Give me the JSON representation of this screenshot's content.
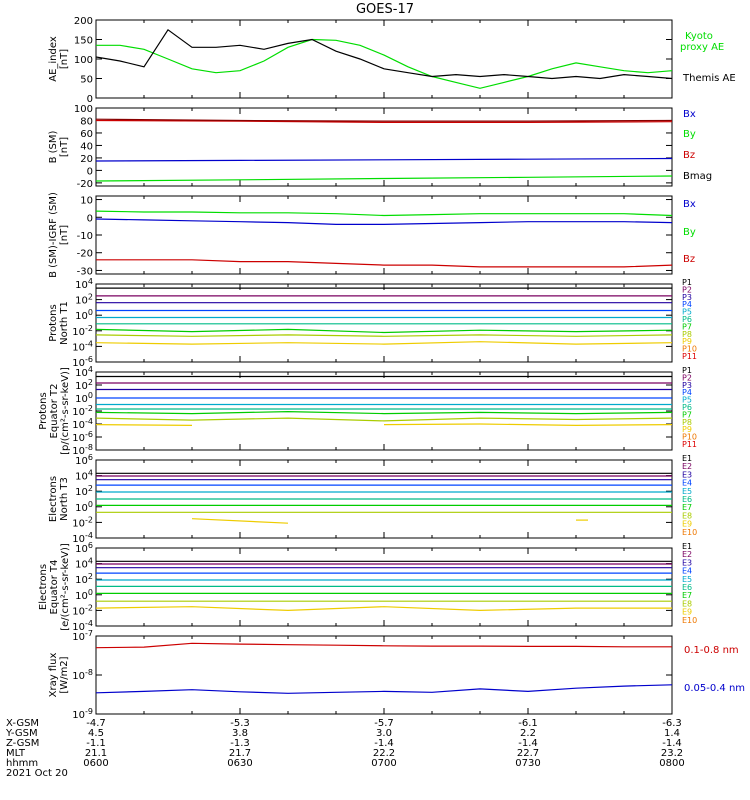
{
  "title": "GOES-17",
  "date_label": "2021 Oct 20",
  "orbit_labels": [
    "X-GSM",
    "Y-GSM",
    "Z-GSM",
    "MLT",
    "hhmm"
  ],
  "orbit_columns": [
    {
      "x": "-4.7",
      "y": "4.5",
      "z": "-1.1",
      "mlt": "21.1",
      "hhmm": "0600"
    },
    {
      "x": "-5.3",
      "y": "3.8",
      "z": "-1.3",
      "mlt": "21.7",
      "hhmm": "0630"
    },
    {
      "x": "-5.7",
      "y": "3.0",
      "z": "-1.4",
      "mlt": "22.2",
      "hhmm": "0700"
    },
    {
      "x": "-6.1",
      "y": "2.2",
      "z": "-1.4",
      "mlt": "22.7",
      "hhmm": "0730"
    },
    {
      "x": "-6.3",
      "y": "1.4",
      "z": "-1.4",
      "mlt": "23.2",
      "hhmm": "0800"
    }
  ],
  "colors": {
    "black": "#000000",
    "blue": "#0000cc",
    "green": "#00dd00",
    "red": "#cc0000",
    "dark_red": "#880000",
    "ramp": [
      "#000000",
      "#7a0060",
      "#2000a0",
      "#0044ff",
      "#00aacc",
      "#00bb88",
      "#00cc00",
      "#aacc00",
      "#eecc00",
      "#ee7700",
      "#dd0000"
    ]
  },
  "chart_data": [
    {
      "type": "line",
      "ylabel": "AE_index [nT]",
      "ylim": [
        0,
        200
      ],
      "yticks": [
        "0",
        "50",
        "100",
        "150",
        "200"
      ],
      "x": [
        0,
        5,
        10,
        15,
        20,
        25,
        30,
        35,
        40,
        45,
        50,
        55,
        60,
        65,
        70,
        75,
        80,
        85,
        90,
        95,
        100,
        105,
        110,
        115,
        120
      ],
      "series": [
        {
          "name": "Kyoto proxy AE",
          "color": "green",
          "values": [
            135,
            135,
            125,
            100,
            75,
            65,
            70,
            95,
            130,
            150,
            148,
            135,
            110,
            80,
            55,
            40,
            25,
            40,
            55,
            75,
            90,
            80,
            70,
            65,
            70
          ]
        },
        {
          "name": "Themis AE",
          "color": "black",
          "values": [
            105,
            95,
            80,
            175,
            130,
            130,
            135,
            125,
            140,
            150,
            120,
            100,
            75,
            65,
            55,
            60,
            55,
            60,
            55,
            50,
            55,
            50,
            60,
            55,
            50
          ]
        }
      ]
    },
    {
      "type": "line",
      "ylabel": "B (SM) [nT]",
      "ylim": [
        -25,
        100
      ],
      "yticks": [
        "-20",
        "0",
        "20",
        "40",
        "60",
        "80",
        "100"
      ],
      "x": [
        0,
        30,
        60,
        90,
        120
      ],
      "series": [
        {
          "name": "Bx",
          "color": "blue",
          "values": [
            15,
            16,
            17,
            18,
            19
          ]
        },
        {
          "name": "By",
          "color": "green",
          "values": [
            -17,
            -15,
            -13,
            -11,
            -9
          ]
        },
        {
          "name": "Bz",
          "color": "red",
          "values": [
            80,
            79,
            77,
            77,
            78
          ]
        },
        {
          "name": "Bmag",
          "color": "dark_red",
          "values": [
            82,
            80,
            79,
            79,
            80
          ]
        }
      ]
    },
    {
      "type": "line",
      "ylabel": "B (SM)-IGRF (SM) [nT]",
      "ylim": [
        -32,
        12
      ],
      "yticks": [
        "-30",
        "-20",
        "-10",
        "0",
        "10"
      ],
      "x": [
        0,
        10,
        20,
        30,
        40,
        50,
        60,
        70,
        80,
        90,
        100,
        110,
        120
      ],
      "series": [
        {
          "name": "Bx",
          "color": "blue",
          "values": [
            -1,
            -1.5,
            -2,
            -2.5,
            -3,
            -4,
            -4,
            -3.5,
            -3,
            -2.5,
            -2.5,
            -2.5,
            -3
          ]
        },
        {
          "name": "By",
          "color": "green",
          "values": [
            3.5,
            3,
            3,
            2.5,
            2.5,
            2,
            1,
            1.5,
            2,
            2,
            2,
            2,
            1
          ]
        },
        {
          "name": "Bz",
          "color": "red",
          "values": [
            -24,
            -24,
            -24,
            -25,
            -25,
            -26,
            -27,
            -27,
            -28,
            -28,
            -28,
            -28,
            -27
          ]
        }
      ]
    },
    {
      "type": "line",
      "ylabel": "Protons North T1",
      "yscale": "log",
      "ylim": [
        1e-06,
        10000.0
      ],
      "yticks": [
        "10^-6",
        "10^-4",
        "10^-2",
        "10^0",
        "10^2",
        "10^4"
      ],
      "x": [
        0,
        20,
        40,
        60,
        80,
        100,
        120
      ],
      "series": [
        {
          "name": "P1",
          "values": [
            3000,
            3000,
            3000,
            3000,
            3000,
            3000,
            3000
          ]
        },
        {
          "name": "P2",
          "values": [
            300,
            300,
            300,
            300,
            300,
            300,
            300
          ]
        },
        {
          "name": "P3",
          "values": [
            40,
            40,
            40,
            40,
            40,
            40,
            40
          ]
        },
        {
          "name": "P4",
          "values": [
            4,
            4,
            4,
            4,
            4,
            4,
            4
          ]
        },
        {
          "name": "P5",
          "values": [
            0.5,
            0.5,
            0.5,
            0.5,
            0.5,
            0.5,
            0.5
          ]
        },
        {
          "name": "P6",
          "values": [
            0.08,
            0.08,
            0.08,
            0.08,
            0.08,
            0.08,
            0.08
          ]
        },
        {
          "name": "P7",
          "values": [
            0.015,
            0.008,
            0.015,
            0.006,
            0.012,
            0.008,
            0.012
          ]
        },
        {
          "name": "P8",
          "values": [
            0.003,
            0.002,
            0.003,
            0.002,
            0.003,
            0.002,
            0.003
          ]
        },
        {
          "name": "P9",
          "values": [
            0.0003,
            0.0002,
            0.0003,
            0.0002,
            0.0004,
            0.0002,
            0.0003
          ]
        },
        {
          "name": "P10",
          "values": [
            null,
            null,
            null,
            null,
            null,
            null,
            null
          ]
        },
        {
          "name": "P11",
          "values": [
            null,
            null,
            null,
            null,
            null,
            null,
            null
          ]
        }
      ]
    },
    {
      "type": "line",
      "ylabel": "Protons Equator T2 [p/(cm^2-s-sr-keV)]",
      "yscale": "log",
      "ylim": [
        1e-08,
        10000.0
      ],
      "yticks": [
        "10^-8",
        "10^-6",
        "10^-4",
        "10^-2",
        "10^0",
        "10^2",
        "10^4"
      ],
      "x": [
        0,
        20,
        40,
        60,
        80,
        100,
        120
      ],
      "series": [
        {
          "name": "P1",
          "values": [
            2000,
            2000,
            2000,
            2000,
            2000,
            2000,
            2000
          ]
        },
        {
          "name": "P2",
          "values": [
            200,
            200,
            200,
            200,
            200,
            200,
            200
          ]
        },
        {
          "name": "P3",
          "values": [
            20,
            20,
            20,
            20,
            20,
            20,
            20
          ]
        },
        {
          "name": "P4",
          "values": [
            1,
            1,
            1,
            1,
            1,
            1,
            1
          ]
        },
        {
          "name": "P5",
          "values": [
            0.1,
            0.1,
            0.1,
            0.1,
            0.1,
            0.1,
            0.1
          ]
        },
        {
          "name": "P6",
          "values": [
            0.02,
            0.02,
            0.02,
            0.02,
            0.02,
            0.02,
            0.02
          ]
        },
        {
          "name": "P7",
          "values": [
            0.006,
            0.004,
            0.008,
            0.004,
            0.006,
            0.004,
            0.006
          ]
        },
        {
          "name": "P8",
          "values": [
            0.0008,
            0.0004,
            0.0008,
            0.0003,
            0.0008,
            0.0005,
            0.0008
          ]
        },
        {
          "name": "P9",
          "values": [
            8e-05,
            6e-05,
            null,
            8e-05,
            0.0001,
            6e-05,
            8e-05
          ]
        },
        {
          "name": "P10",
          "values": [
            null,
            null,
            null,
            null,
            null,
            null,
            null
          ]
        },
        {
          "name": "P11",
          "values": [
            null,
            null,
            null,
            null,
            null,
            null,
            null
          ]
        }
      ]
    },
    {
      "type": "line",
      "ylabel": "Electrons North T3",
      "yscale": "log",
      "ylim": [
        0.0001,
        1000000.0
      ],
      "yticks": [
        "10^-4",
        "10^-2",
        "10^0",
        "10^2",
        "10^4",
        "10^6"
      ],
      "x": [
        0,
        20,
        40,
        60,
        80,
        100,
        120
      ],
      "series": [
        {
          "name": "E1",
          "values": [
            20000,
            20000,
            20000,
            20000,
            20000,
            20000,
            20000
          ]
        },
        {
          "name": "E2",
          "values": [
            9000,
            9000,
            9000,
            9000,
            9000,
            9000,
            9000
          ]
        },
        {
          "name": "E3",
          "values": [
            3000,
            3000,
            3000,
            3000,
            3000,
            3000,
            3000
          ]
        },
        {
          "name": "E4",
          "values": [
            600,
            600,
            600,
            600,
            600,
            600,
            600
          ]
        },
        {
          "name": "E5",
          "values": [
            80,
            80,
            80,
            80,
            80,
            80,
            80
          ]
        },
        {
          "name": "E6",
          "values": [
            10,
            10,
            10,
            10,
            10,
            10,
            10
          ]
        },
        {
          "name": "E7",
          "values": [
            1.5,
            1.5,
            1.5,
            1.5,
            1.5,
            1.5,
            1.5
          ]
        },
        {
          "name": "E8",
          "values": [
            0.2,
            0.2,
            0.2,
            0.2,
            0.2,
            0.2,
            0.2
          ]
        },
        {
          "name": "E9",
          "values": [
            null,
            0.03,
            0.008,
            null,
            null,
            0.02,
            null
          ]
        },
        {
          "name": "E10",
          "values": [
            null,
            null,
            null,
            null,
            null,
            null,
            null
          ]
        }
      ]
    },
    {
      "type": "line",
      "ylabel": "Electrons Equator T4 [e/(cm^2-s-sr-keV)]",
      "yscale": "log",
      "ylim": [
        0.0001,
        1000000.0
      ],
      "yticks": [
        "10^-4",
        "10^-2",
        "10^0",
        "10^2",
        "10^4",
        "10^6"
      ],
      "x": [
        0,
        20,
        40,
        60,
        80,
        100,
        120
      ],
      "series": [
        {
          "name": "E1",
          "values": [
            20000,
            20000,
            20000,
            20000,
            20000,
            20000,
            20000
          ]
        },
        {
          "name": "E2",
          "values": [
            9000,
            9000,
            9000,
            9000,
            9000,
            9000,
            9000
          ]
        },
        {
          "name": "E3",
          "values": [
            3000,
            3000,
            3000,
            3000,
            3000,
            3000,
            3000
          ]
        },
        {
          "name": "E4",
          "values": [
            600,
            600,
            600,
            600,
            600,
            600,
            600
          ]
        },
        {
          "name": "E5",
          "values": [
            80,
            80,
            80,
            80,
            80,
            80,
            80
          ]
        },
        {
          "name": "E6",
          "values": [
            12,
            12,
            12,
            12,
            12,
            12,
            12
          ]
        },
        {
          "name": "E7",
          "values": [
            1.5,
            1.5,
            1.5,
            1.5,
            1.5,
            1.5,
            1.5
          ]
        },
        {
          "name": "E8",
          "values": [
            0.15,
            0.15,
            0.15,
            0.15,
            0.15,
            0.15,
            0.15
          ]
        },
        {
          "name": "E9",
          "values": [
            0.02,
            0.03,
            0.01,
            0.03,
            0.01,
            0.02,
            0.02
          ]
        },
        {
          "name": "E10",
          "values": [
            null,
            null,
            null,
            null,
            null,
            null,
            null
          ]
        }
      ]
    },
    {
      "type": "line",
      "ylabel": "Xray flux [W/m^2]",
      "yscale": "log",
      "ylim": [
        1e-09,
        1e-07
      ],
      "yticks": [
        "10^-9",
        "10^-8",
        "10^-7"
      ],
      "x": [
        0,
        10,
        20,
        30,
        40,
        50,
        60,
        70,
        80,
        90,
        100,
        110,
        120
      ],
      "series": [
        {
          "name": "0.1-0.8 nm",
          "color": "red",
          "values": [
            5e-08,
            5.2e-08,
            6.5e-08,
            6.2e-08,
            6e-08,
            5.8e-08,
            5.6e-08,
            5.5e-08,
            5.5e-08,
            5.4e-08,
            5.4e-08,
            5.3e-08,
            5.3e-08
          ]
        },
        {
          "name": "0.05-0.4 nm",
          "color": "blue",
          "values": [
            3.5e-09,
            3.8e-09,
            4.2e-09,
            3.7e-09,
            3.4e-09,
            3.6e-09,
            3.8e-09,
            3.6e-09,
            4.4e-09,
            3.8e-09,
            4.6e-09,
            5.2e-09,
            5.6e-09
          ]
        }
      ]
    }
  ],
  "legends": {
    "ae": [
      "Kyoto",
      "proxy AE",
      "Themis AE"
    ],
    "b": [
      "Bx",
      "By",
      "Bz",
      "Bmag"
    ],
    "bdiff": [
      "Bx",
      "By",
      "Bz"
    ],
    "protons": [
      "P1",
      "P2",
      "P3",
      "P4",
      "P5",
      "P6",
      "P7",
      "P8",
      "P9",
      "P10",
      "P11"
    ],
    "electrons": [
      "E1",
      "E2",
      "E3",
      "E4",
      "E5",
      "E6",
      "E7",
      "E8",
      "E9",
      "E10"
    ],
    "xray": [
      "0.1-0.8 nm",
      "0.05-0.4 nm"
    ]
  },
  "ylabels": {
    "ae": [
      "AE_index",
      "[nT]"
    ],
    "b": [
      "B (SM)",
      "[nT]"
    ],
    "bdiff": [
      "B (SM)-IGRF (SM)",
      "[nT]"
    ],
    "p1": [
      "Protons",
      "North T1"
    ],
    "p2": [
      "Protons",
      "Equator T2",
      "[p/(cm²-s-sr-keV)]"
    ],
    "e1": [
      "Electrons",
      "North T3"
    ],
    "e2": [
      "Electrons",
      "Equator T4",
      "[e/(cm²-s-sr-keV)]"
    ],
    "xr": [
      "Xray flux",
      "[W/m2]"
    ]
  }
}
